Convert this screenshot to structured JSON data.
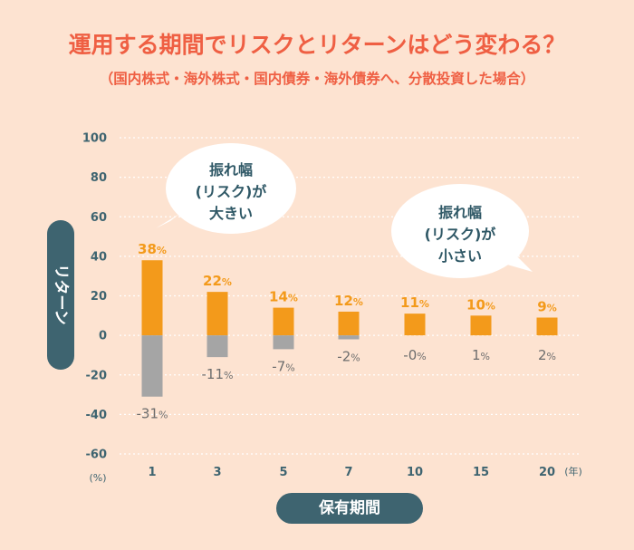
{
  "header": {
    "title": "運用する期間でリスクとリターンはどう変わる？",
    "subtitle": "（国内株式・海外株式・国内債券・海外債券へ、分散投資した場合）"
  },
  "labels": {
    "y_axis": "リターン",
    "x_axis": "保有期間",
    "y_unit": "(%)",
    "x_unit": "(年)",
    "value_suffix": "%"
  },
  "bubbles": {
    "left": [
      "振れ幅",
      "(リスク)が",
      "大きい"
    ],
    "right": [
      "振れ幅",
      "(リスク)が",
      "小さい"
    ]
  },
  "colors": {
    "background": "#fde3d1",
    "positive": "#f39a1b",
    "negative": "#a5a5a5",
    "accent": "#3e6470",
    "title": "#ef5f43"
  },
  "chart_data": {
    "type": "bar",
    "categories": [
      "1",
      "3",
      "5",
      "7",
      "10",
      "15",
      "20"
    ],
    "series": [
      {
        "values": [
          38,
          22,
          14,
          12,
          11,
          10,
          9
        ]
      },
      {
        "values": [
          -31,
          -11,
          -7,
          -2,
          0,
          1,
          2
        ]
      }
    ],
    "value_labels_negative": [
      "-31",
      "-11",
      "-7",
      "-2",
      "-0",
      "1",
      "2"
    ],
    "ylim": [
      -60,
      100
    ],
    "yticks": [
      100,
      80,
      60,
      40,
      20,
      0,
      -20,
      -40,
      -60
    ],
    "grid": true
  }
}
